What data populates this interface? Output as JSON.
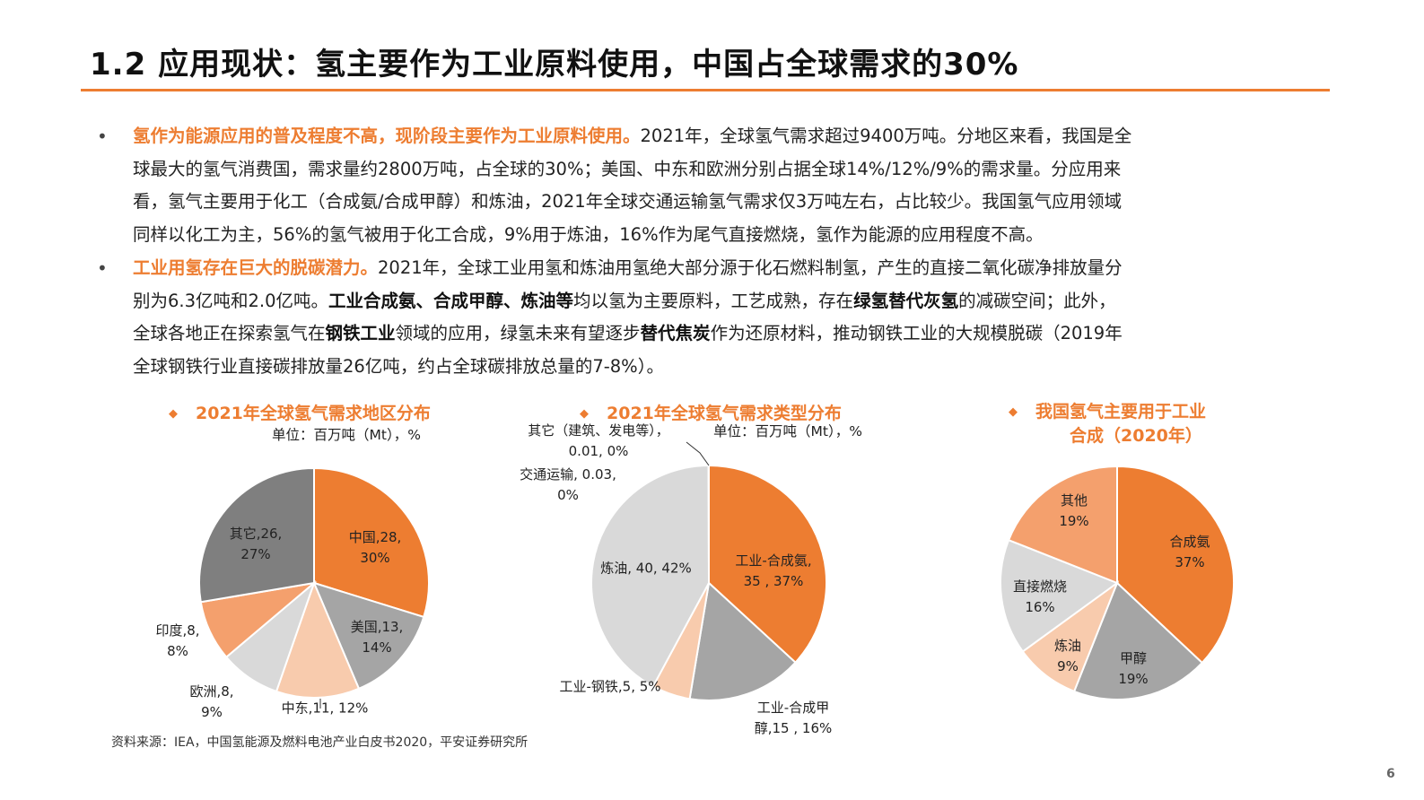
{
  "title": "1.2 应用现状：氢主要作为工业原料使用，中国占全球需求的30%",
  "bullets": [
    {
      "lines": [
        [
          {
            "t": "氢作为能源应用的普及程度不高，现阶段主要作为工业原料使用。",
            "s": "hl"
          },
          {
            "t": "2021年，全球氢气需求超过9400万吨。分地区来看，我国是全"
          }
        ],
        [
          {
            "t": "球最大的氢气消费国，需求量约2800万吨，占全球的30%；美国、中东和欧洲分别占据全球14%/12%/9%的需求量。分应用来"
          }
        ],
        [
          {
            "t": "看，氢气主要用于化工（合成氨/合成甲醇）和炼油，2021年全球交通运输氢气需求仅3万吨左右，占比较少。我国氢气应用领域"
          }
        ],
        [
          {
            "t": "同样以化工为主，56%的氢气被用于化工合成，9%用于炼油，16%作为尾气直接燃烧，氢作为能源的应用程度不高。"
          }
        ]
      ]
    },
    {
      "lines": [
        [
          {
            "t": "工业用氢存在巨大的脱碳潜力。",
            "s": "hl"
          },
          {
            "t": "2021年，全球工业用氢和炼油用氢绝大部分源于化石燃料制氢，产生的直接二氧化碳净排放量分"
          }
        ],
        [
          {
            "t": "别为6.3亿吨和2.0亿吨。"
          },
          {
            "t": "工业合成氨、合成甲醇、炼油等",
            "s": "bd"
          },
          {
            "t": "均以氢为主要原料，工艺成熟，存在"
          },
          {
            "t": "绿氢替代灰氢",
            "s": "bd"
          },
          {
            "t": "的减碳空间；此外，"
          }
        ],
        [
          {
            "t": "全球各地正在探索氢气在"
          },
          {
            "t": "钢铁工业",
            "s": "bd"
          },
          {
            "t": "领域的应用，绿氢未来有望逐步"
          },
          {
            "t": "替代焦炭",
            "s": "bd"
          },
          {
            "t": "作为还原材料，推动钢铁工业的大规模脱碳（2019年"
          }
        ],
        [
          {
            "t": "全球钢铁行业直接碳排放量26亿吨，约占全球碳排放总量的7-8%）。"
          }
        ]
      ]
    }
  ],
  "chart_data": [
    {
      "type": "pie",
      "title": "2021年全球氢气需求地区分布",
      "unit": "单位：百万吨（Mt），%",
      "slices": [
        {
          "label": "中国",
          "value": 28,
          "percent": 30,
          "color": "#ED7D31",
          "text": [
            "中国,28,",
            "30%"
          ]
        },
        {
          "label": "美国",
          "value": 13,
          "percent": 14,
          "color": "#A5A5A5",
          "text": [
            "美国,13,",
            "14%"
          ]
        },
        {
          "label": "中东",
          "value": 11,
          "percent": 12,
          "color": "#F8CBAD",
          "text": [
            "中东,11, 12%"
          ]
        },
        {
          "label": "欧洲",
          "value": 8,
          "percent": 9,
          "color": "#D9D9D9",
          "text": [
            "欧洲,8,",
            "9%"
          ]
        },
        {
          "label": "印度",
          "value": 8,
          "percent": 8,
          "color": "#F4A06D",
          "text": [
            "印度,8,",
            "8%"
          ]
        },
        {
          "label": "其它",
          "value": 26,
          "percent": 27,
          "color": "#7F7F7F",
          "text": [
            "其它,26,",
            "27%"
          ]
        }
      ]
    },
    {
      "type": "pie",
      "title": "2021年全球氢气需求类型分布",
      "unit": "单位：百万吨（Mt），%",
      "slices": [
        {
          "label": "工业-合成氨",
          "value": 35,
          "percent": 37,
          "color": "#ED7D31",
          "text": [
            "工业-合成氨,",
            "35 , 37%"
          ]
        },
        {
          "label": "工业-合成甲醇",
          "value": 15,
          "percent": 16,
          "color": "#A5A5A5",
          "text": [
            "工业-合成甲",
            "醇,15 , 16%"
          ]
        },
        {
          "label": "工业-钢铁",
          "value": 5,
          "percent": 5,
          "color": "#F8CBAD",
          "text": [
            "工业-钢铁,5, 5%"
          ]
        },
        {
          "label": "炼油",
          "value": 40,
          "percent": 42,
          "color": "#D9D9D9",
          "text": [
            "炼油, 40, 42%"
          ]
        },
        {
          "label": "交通运输",
          "value": 0.03,
          "percent": 0,
          "color": "#BFBFBF",
          "text": [
            "交通运输, 0.03,",
            "0%"
          ]
        },
        {
          "label": "其它（建筑、发电等）",
          "value": 0.01,
          "percent": 0,
          "color": "#E7E6E6",
          "text": [
            "其它（建筑、发电等），",
            "0.01, 0%"
          ]
        }
      ]
    },
    {
      "type": "pie",
      "title": "我国氢气主要用于工业合成（2020年）",
      "title_lines": [
        "我国氢气主要用于工业",
        "合成（2020年）"
      ],
      "slices": [
        {
          "label": "合成氨",
          "percent": 37,
          "color": "#ED7D31",
          "text": [
            "合成氨",
            "37%"
          ]
        },
        {
          "label": "甲醇",
          "percent": 19,
          "color": "#A5A5A5",
          "text": [
            "甲醇",
            "19%"
          ]
        },
        {
          "label": "炼油",
          "percent": 9,
          "color": "#F8CBAD",
          "text": [
            "炼油",
            "9%"
          ]
        },
        {
          "label": "直接燃烧",
          "percent": 16,
          "color": "#D9D9D9",
          "text": [
            "直接燃烧",
            "16%"
          ]
        },
        {
          "label": "其他",
          "percent": 19,
          "color": "#F4A06D",
          "text": [
            "其他",
            "19%"
          ]
        }
      ]
    }
  ],
  "source": "资料来源：IEA，中国氢能源及燃料电池产业白皮书2020，平安证券研究所",
  "page_number": "6"
}
